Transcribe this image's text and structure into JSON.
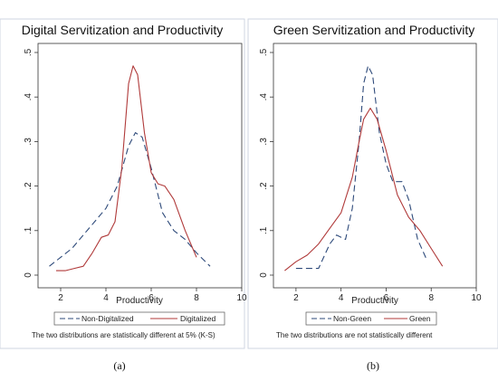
{
  "chart_data": [
    {
      "type": "line",
      "title": "Digital Servitization and Productivity",
      "xlabel": "Productivity",
      "ylabel": "",
      "xlim": [
        1,
        10
      ],
      "ylim": [
        0,
        0.5
      ],
      "xticks": [
        "2",
        "4",
        "6",
        "8",
        "10"
      ],
      "yticks": [
        "0",
        ".1",
        ".2",
        ".3",
        ".4",
        ".5"
      ],
      "legend_position": "bottom",
      "series": [
        {
          "name": "Non-Digitalized",
          "style": "dashed",
          "color": "#2e4a7a",
          "x": [
            1.5,
            2.0,
            2.5,
            3.0,
            3.5,
            4.0,
            4.5,
            5.0,
            5.3,
            5.6,
            6.0,
            6.5,
            7.0,
            7.5,
            8.0,
            8.6
          ],
          "y": [
            0.02,
            0.04,
            0.06,
            0.09,
            0.12,
            0.15,
            0.2,
            0.29,
            0.32,
            0.31,
            0.24,
            0.14,
            0.1,
            0.08,
            0.05,
            0.02
          ]
        },
        {
          "name": "Digitalized",
          "style": "solid",
          "color": "#b03a3a",
          "x": [
            1.8,
            2.2,
            2.6,
            3.0,
            3.4,
            3.8,
            4.1,
            4.4,
            4.7,
            5.0,
            5.2,
            5.4,
            5.7,
            6.0,
            6.3,
            6.6,
            7.0,
            7.5,
            8.0
          ],
          "y": [
            0.01,
            0.01,
            0.015,
            0.02,
            0.05,
            0.085,
            0.09,
            0.12,
            0.24,
            0.43,
            0.47,
            0.45,
            0.32,
            0.23,
            0.205,
            0.2,
            0.17,
            0.1,
            0.04
          ]
        }
      ],
      "note": "The two distributions are statistically different at 5% (K-S)",
      "sublabel": "(a)"
    },
    {
      "type": "line",
      "title": "Green Servitization and Productivity",
      "xlabel": "Productivity",
      "ylabel": "",
      "xlim": [
        1,
        10
      ],
      "ylim": [
        0,
        0.5
      ],
      "xticks": [
        "2",
        "4",
        "6",
        "8",
        "10"
      ],
      "yticks": [
        "0",
        ".1",
        ".2",
        ".3",
        ".4",
        ".5"
      ],
      "legend_position": "bottom",
      "series": [
        {
          "name": "Non-Green",
          "style": "dashed",
          "color": "#2e4a7a",
          "x": [
            2.0,
            2.5,
            3.0,
            3.5,
            3.8,
            4.2,
            4.5,
            4.8,
            5.0,
            5.2,
            5.4,
            5.7,
            6.0,
            6.3,
            6.7,
            7.0,
            7.4,
            7.8
          ],
          "y": [
            0.015,
            0.015,
            0.015,
            0.07,
            0.09,
            0.08,
            0.15,
            0.3,
            0.43,
            0.47,
            0.45,
            0.32,
            0.25,
            0.21,
            0.21,
            0.17,
            0.08,
            0.035
          ]
        },
        {
          "name": "Green",
          "style": "solid",
          "color": "#b03a3a",
          "x": [
            1.5,
            2.0,
            2.5,
            3.0,
            3.5,
            4.0,
            4.5,
            4.8,
            5.0,
            5.3,
            5.6,
            6.0,
            6.5,
            7.0,
            7.5,
            8.0,
            8.5
          ],
          "y": [
            0.01,
            0.03,
            0.045,
            0.07,
            0.105,
            0.14,
            0.22,
            0.3,
            0.35,
            0.375,
            0.35,
            0.28,
            0.18,
            0.13,
            0.1,
            0.06,
            0.02
          ]
        }
      ],
      "note": "The two distributions are not statistically different",
      "sublabel": "(b)"
    }
  ]
}
